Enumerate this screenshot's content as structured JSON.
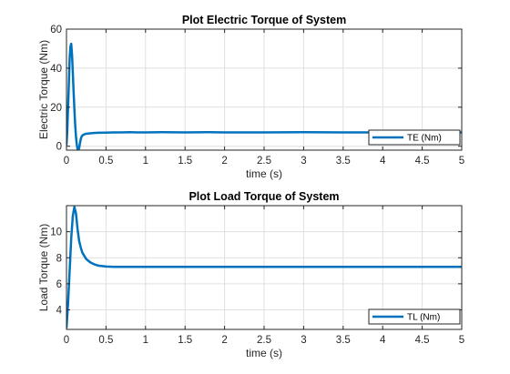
{
  "chart_data": [
    {
      "type": "line",
      "title": "Plot Electric Torque of System",
      "xlabel": "time (s)",
      "ylabel": "Electric Torque (Nm)",
      "xlim": [
        0,
        5
      ],
      "ylim": [
        -2,
        60
      ],
      "xticks": [
        0,
        0.5,
        1,
        1.5,
        2,
        2.5,
        3,
        3.5,
        4,
        4.5,
        5
      ],
      "yticks": [
        0,
        20,
        40,
        60
      ],
      "grid": true,
      "legend": "bottom-right",
      "series": [
        {
          "name": "TE (Nm)",
          "color": "#0072BD",
          "x": [
            0,
            0.01,
            0.02,
            0.03,
            0.04,
            0.05,
            0.06,
            0.07,
            0.08,
            0.09,
            0.1,
            0.11,
            0.12,
            0.13,
            0.14,
            0.15,
            0.16,
            0.17,
            0.18,
            0.19,
            0.2,
            0.22,
            0.25,
            0.3,
            0.35,
            0.4,
            0.5,
            0.6,
            0.7,
            0.8,
            0.9,
            1,
            1.2,
            1.5,
            1.8,
            2,
            2.5,
            3,
            3.5,
            4,
            4.5,
            5
          ],
          "y": [
            0.5,
            8,
            20,
            32,
            45,
            51,
            52.5,
            47,
            38,
            28,
            19,
            11,
            5,
            1,
            -1.5,
            -2,
            -1,
            1.5,
            3.5,
            4.8,
            5.5,
            6,
            6.4,
            6.6,
            6.8,
            6.9,
            7,
            7.1,
            7.1,
            7.2,
            7.1,
            7.1,
            7.2,
            7.1,
            7.2,
            7.1,
            7.1,
            7.2,
            7.1,
            7.1,
            7.1,
            7.1
          ]
        }
      ]
    },
    {
      "type": "line",
      "title": "Plot Load Torque of System",
      "xlabel": "time (s)",
      "ylabel": "Load Torque (Nm)",
      "xlim": [
        0,
        5
      ],
      "ylim": [
        2.5,
        12
      ],
      "xticks": [
        0,
        0.5,
        1,
        1.5,
        2,
        2.5,
        3,
        3.5,
        4,
        4.5,
        5
      ],
      "yticks": [
        4,
        6,
        8,
        10
      ],
      "grid": true,
      "legend": "bottom-right",
      "series": [
        {
          "name": "TL (Nm)",
          "color": "#0072BD",
          "x": [
            0,
            0.02,
            0.04,
            0.06,
            0.08,
            0.1,
            0.12,
            0.14,
            0.16,
            0.18,
            0.2,
            0.25,
            0.3,
            0.35,
            0.4,
            0.5,
            0.6,
            0.7,
            0.8,
            1,
            1.5,
            2,
            2.5,
            3,
            3.5,
            4,
            4.5,
            5
          ],
          "y": [
            2.6,
            4.5,
            7,
            9.5,
            11.2,
            11.9,
            11.4,
            10.2,
            9.3,
            8.8,
            8.4,
            7.9,
            7.65,
            7.5,
            7.4,
            7.33,
            7.3,
            7.3,
            7.3,
            7.3,
            7.3,
            7.3,
            7.3,
            7.3,
            7.3,
            7.3,
            7.3,
            7.3
          ]
        }
      ]
    }
  ]
}
